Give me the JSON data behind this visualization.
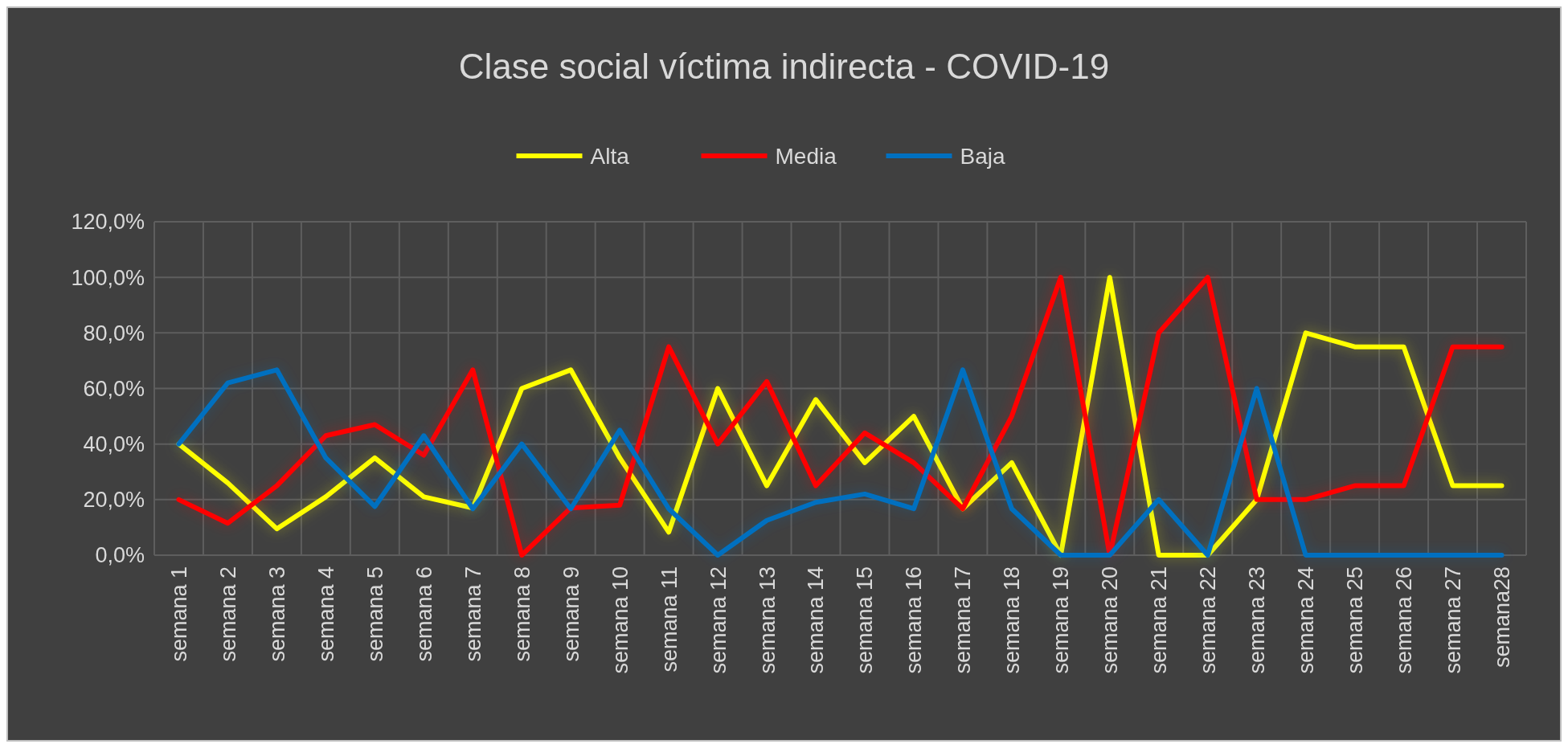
{
  "chart_data": {
    "type": "line",
    "title": "Clase social víctima indirecta - COVID-19",
    "categories": [
      "semana 1",
      "semana 2",
      "semana 3",
      "semana 4",
      "semana 5",
      "semana 6",
      "semana 7",
      "semana 8",
      "semana 9",
      "semana 10",
      "semana 11",
      "semana 12",
      "semana 13",
      "semana 14",
      "semana 15",
      "semana 16",
      "semana 17",
      "semana 18",
      "semana 19",
      "semana 20",
      "semana 21",
      "semana 22",
      "semana 23",
      "semana 24",
      "semana 25",
      "semana 26",
      "semana 27",
      "semana28"
    ],
    "series": [
      {
        "name": "Alta",
        "color": "#ffff00",
        "values": [
          40,
          26,
          9.5,
          21,
          35,
          21,
          17,
          60,
          66.7,
          35,
          8.3,
          60,
          25,
          56,
          33.3,
          50,
          16.7,
          33.3,
          0,
          100,
          0,
          0,
          20,
          80,
          75,
          75,
          25,
          25
        ]
      },
      {
        "name": "Media",
        "color": "#ff0000",
        "values": [
          20,
          11.5,
          25,
          43,
          47,
          36,
          66.7,
          0,
          17,
          18,
          75,
          40,
          62.5,
          25,
          44,
          33.3,
          16.7,
          50,
          100,
          0,
          80,
          100,
          20,
          20,
          25,
          25,
          75,
          75
        ]
      },
      {
        "name": "Baja",
        "color": "#0070c0",
        "values": [
          40,
          62,
          66.7,
          35,
          17.5,
          43,
          16.7,
          40,
          16.7,
          45,
          16.7,
          0,
          12.5,
          19,
          22,
          16.7,
          66.7,
          16.7,
          0,
          0,
          20,
          0,
          60,
          0,
          0,
          0,
          0,
          0
        ]
      }
    ],
    "ylim": [
      0,
      120
    ],
    "yticks": [
      {
        "value": 0,
        "label": "0,0%"
      },
      {
        "value": 20,
        "label": "20,0%"
      },
      {
        "value": 40,
        "label": "40,0%"
      },
      {
        "value": 60,
        "label": "60,0%"
      },
      {
        "value": 80,
        "label": "80,0%"
      },
      {
        "value": 100,
        "label": "100,0%"
      },
      {
        "value": 120,
        "label": "120,0%"
      }
    ],
    "grid": true,
    "legend": "top",
    "marker": "none",
    "line_style": "solid"
  }
}
